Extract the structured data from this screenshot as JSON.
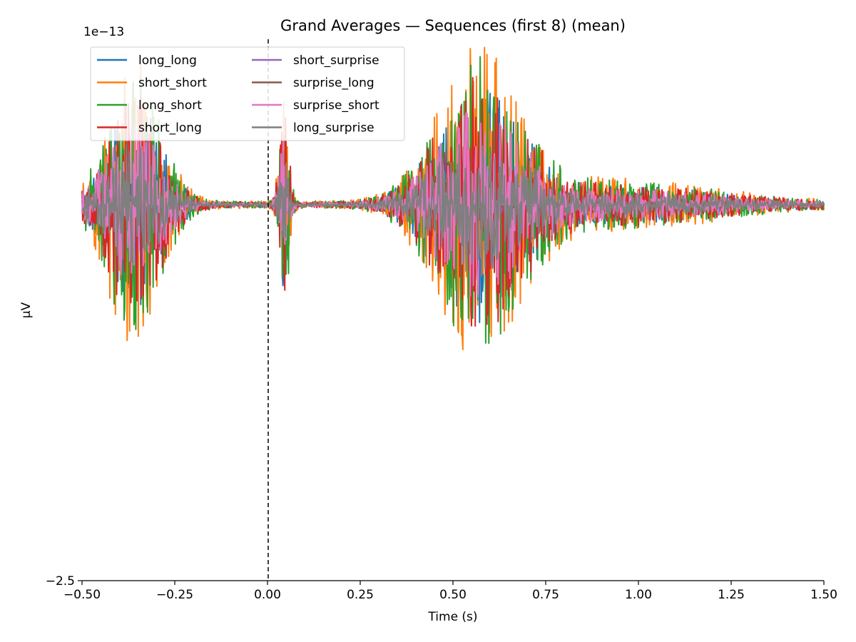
{
  "chart_data": {
    "type": "line",
    "title": "Grand Averages — Sequences (first 8) (mean)",
    "xlabel": "Time (s)",
    "ylabel": "µV",
    "offset_label": "1e−13",
    "xlim": [
      -0.5,
      1.5
    ],
    "ylim": [
      -2.5,
      1.1
    ],
    "x_ticks": [
      "−0.50",
      "−0.25",
      "0.00",
      "0.25",
      "0.50",
      "0.75",
      "1.00",
      "1.25",
      "1.50"
    ],
    "x_tick_values": [
      -0.5,
      -0.25,
      0.0,
      0.25,
      0.5,
      0.75,
      1.0,
      1.25,
      1.5
    ],
    "y_ticks": [
      "−2.5"
    ],
    "y_tick_values": [
      -2.5
    ],
    "vline_x": 0.0,
    "grid": false,
    "legend_position": "upper left",
    "series": [
      {
        "name": "long_long",
        "color": "#1f77b4",
        "peak": 0.9
      },
      {
        "name": "short_short",
        "color": "#ff7f0e",
        "peak": 1.25
      },
      {
        "name": "long_short",
        "color": "#2ca02c",
        "peak": 1.15
      },
      {
        "name": "short_long",
        "color": "#d62728",
        "peak": 1.0
      },
      {
        "name": "short_surprise",
        "color": "#9467bd",
        "peak": 0.1
      },
      {
        "name": "surprise_long",
        "color": "#8c564b",
        "peak": 0.12
      },
      {
        "name": "surprise_short",
        "color": "#e377c2",
        "peak": 0.75
      },
      {
        "name": "long_surprise",
        "color": "#7f7f7f",
        "peak": 0.55
      }
    ]
  }
}
